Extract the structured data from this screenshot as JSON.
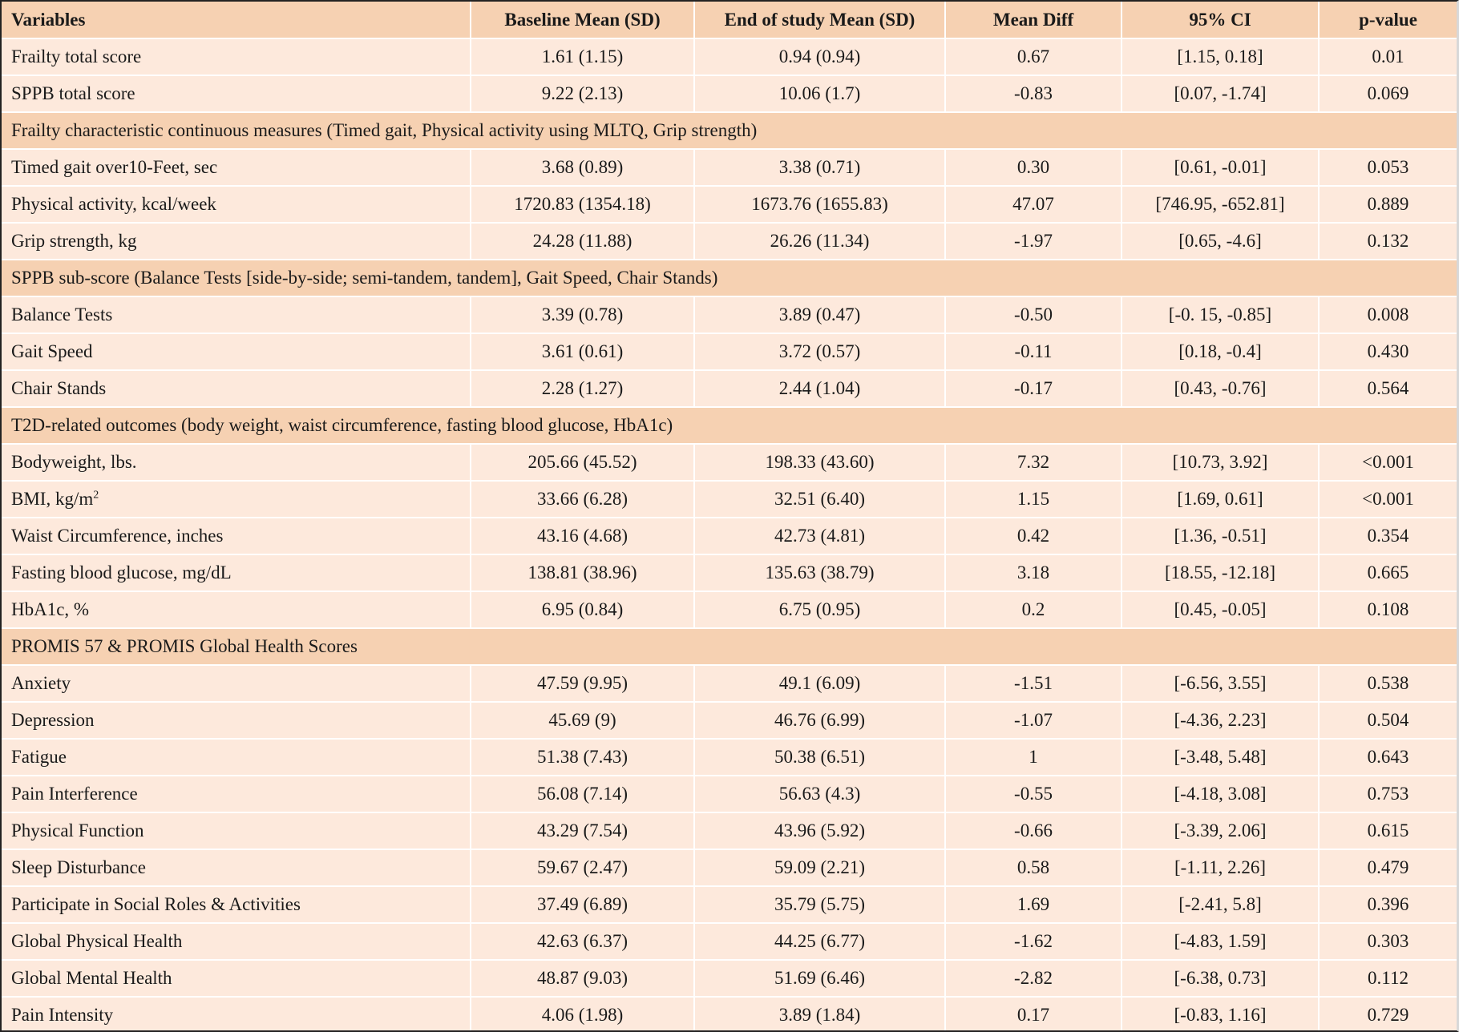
{
  "table": {
    "headers": [
      "Variables",
      "Baseline Mean (SD)",
      "End of study Mean (SD)",
      "Mean Diff",
      "95% CI",
      "p-value"
    ],
    "rows": [
      {
        "type": "data",
        "cells": [
          "Frailty total score",
          "1.61 (1.15)",
          "0.94 (0.94)",
          "0.67",
          "[1.15, 0.18]",
          "0.01"
        ]
      },
      {
        "type": "data",
        "cells": [
          "SPPB total score",
          "9.22 (2.13)",
          "10.06 (1.7)",
          "-0.83",
          "[0.07, -1.74]",
          "0.069"
        ]
      },
      {
        "type": "section",
        "label": "Frailty characteristic continuous measures  (Timed gait, Physical activity using MLTQ, Grip strength)"
      },
      {
        "type": "data",
        "cells": [
          "Timed gait over10-Feet, sec",
          "3.68 (0.89)",
          "3.38 (0.71)",
          "0.30",
          "[0.61, -0.01]",
          "0.053"
        ]
      },
      {
        "type": "data",
        "cells": [
          "Physical activity, kcal/week",
          "1720.83 (1354.18)",
          "1673.76 (1655.83)",
          "47.07",
          "[746.95, -652.81]",
          "0.889"
        ]
      },
      {
        "type": "data",
        "cells": [
          "Grip strength, kg",
          "24.28 (11.88)",
          "26.26 (11.34)",
          "-1.97",
          "[0.65, -4.6]",
          "0.132"
        ]
      },
      {
        "type": "section",
        "label": "SPPB sub-score (Balance Tests [side-by-side; semi-tandem, tandem], Gait Speed, Chair Stands)"
      },
      {
        "type": "data",
        "cells": [
          "Balance Tests",
          "3.39 (0.78)",
          "3.89 (0.47)",
          "-0.50",
          "[-0. 15, -0.85]",
          "0.008"
        ]
      },
      {
        "type": "data",
        "cells": [
          "Gait Speed",
          "3.61 (0.61)",
          "3.72 (0.57)",
          "-0.11",
          "[0.18, -0.4]",
          "0.430"
        ]
      },
      {
        "type": "data",
        "cells": [
          "Chair Stands",
          "2.28 (1.27)",
          "2.44 (1.04)",
          "-0.17",
          "[0.43, -0.76]",
          "0.564"
        ]
      },
      {
        "type": "section",
        "label": "T2D-related outcomes (body weight, waist circumference, fasting blood glucose, HbA1c)"
      },
      {
        "type": "data",
        "cells": [
          "Bodyweight, lbs.",
          "205.66 (45.52)",
          "198.33 (43.60)",
          "7.32",
          "[10.73, 3.92]",
          "<0.001"
        ]
      },
      {
        "type": "data",
        "cells": [
          "BMI, kg/m",
          "33.66 (6.28)",
          "32.51 (6.40)",
          "1.15",
          "[1.69, 0.61]",
          "<0.001"
        ],
        "sup": "2"
      },
      {
        "type": "data",
        "cells": [
          "Waist Circumference, inches",
          "43.16 (4.68)",
          "42.73 (4.81)",
          "0.42",
          "[1.36, -0.51]",
          "0.354"
        ]
      },
      {
        "type": "data",
        "cells": [
          "Fasting blood glucose, mg/dL",
          "138.81 (38.96)",
          "135.63 (38.79)",
          "3.18",
          "[18.55, -12.18]",
          "0.665"
        ]
      },
      {
        "type": "data",
        "cells": [
          "HbA1c, %",
          "6.95 (0.84)",
          "6.75 (0.95)",
          "0.2",
          "[0.45, -0.05]",
          "0.108"
        ]
      },
      {
        "type": "section",
        "label": "PROMIS 57 & PROMIS Global Health Scores"
      },
      {
        "type": "data",
        "cells": [
          "Anxiety",
          "47.59 (9.95)",
          "49.1 (6.09)",
          "-1.51",
          "[-6.56, 3.55]",
          "0.538"
        ]
      },
      {
        "type": "data",
        "cells": [
          "Depression",
          "45.69 (9)",
          "46.76 (6.99)",
          "-1.07",
          "[-4.36, 2.23]",
          "0.504"
        ]
      },
      {
        "type": "data",
        "cells": [
          "Fatigue",
          "51.38 (7.43)",
          "50.38 (6.51)",
          "1",
          "[-3.48, 5.48]",
          "0.643"
        ]
      },
      {
        "type": "data",
        "cells": [
          "Pain Interference",
          "56.08 (7.14)",
          "56.63 (4.3)",
          "-0.55",
          "[-4.18, 3.08]",
          "0.753"
        ]
      },
      {
        "type": "data",
        "cells": [
          "Physical Function",
          "43.29 (7.54)",
          "43.96 (5.92)",
          "-0.66",
          "[-3.39, 2.06]",
          "0.615"
        ]
      },
      {
        "type": "data",
        "cells": [
          "Sleep Disturbance",
          "59.67 (2.47)",
          "59.09 (2.21)",
          "0.58",
          "[-1.11, 2.26]",
          "0.479"
        ]
      },
      {
        "type": "data",
        "cells": [
          "Participate in Social Roles & Activities",
          "37.49 (6.89)",
          "35.79 (5.75)",
          "1.69",
          "[-2.41, 5.8]",
          "0.396"
        ]
      },
      {
        "type": "data",
        "cells": [
          "Global Physical Health",
          "42.63 (6.37)",
          "44.25 (6.77)",
          "-1.62",
          "[-4.83, 1.59]",
          "0.303"
        ]
      },
      {
        "type": "data",
        "cells": [
          "Global Mental Health",
          "48.87 (9.03)",
          "51.69 (6.46)",
          "-2.82",
          "[-6.38, 0.73]",
          "0.112"
        ]
      },
      {
        "type": "data",
        "cells": [
          "Pain Intensity",
          "4.06 (1.98)",
          "3.89 (1.84)",
          "0.17",
          "[-0.83, 1.16]",
          "0.729"
        ]
      }
    ]
  },
  "colors": {
    "header_bg": "#f6d1b2",
    "section_bg": "#f6d1b2",
    "row_bg": "#fde9dc"
  }
}
